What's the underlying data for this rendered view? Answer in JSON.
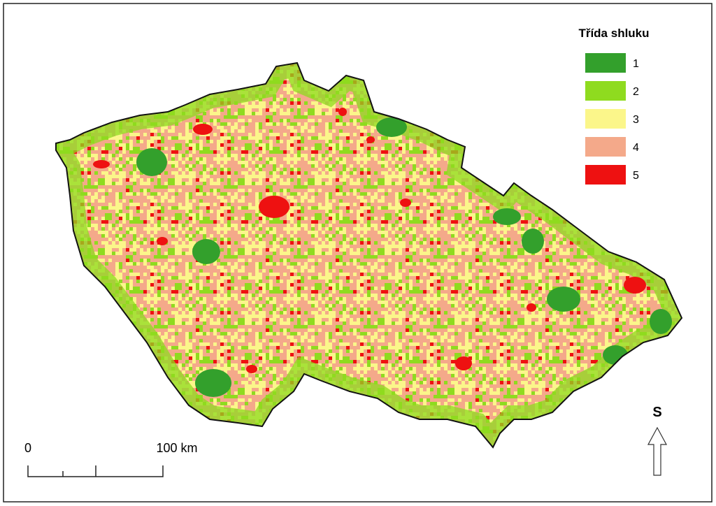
{
  "legend": {
    "title": "Třída shluku",
    "items": [
      {
        "label": "1",
        "color": "#33a02c"
      },
      {
        "label": "2",
        "color": "#8fdb1f"
      },
      {
        "label": "3",
        "color": "#fbf68a"
      },
      {
        "label": "4",
        "color": "#f4a98a"
      },
      {
        "label": "5",
        "color": "#ee1111"
      }
    ]
  },
  "scale_bar": {
    "labels": [
      "0",
      "100 km"
    ]
  },
  "north_arrow": {
    "label": "S"
  }
}
